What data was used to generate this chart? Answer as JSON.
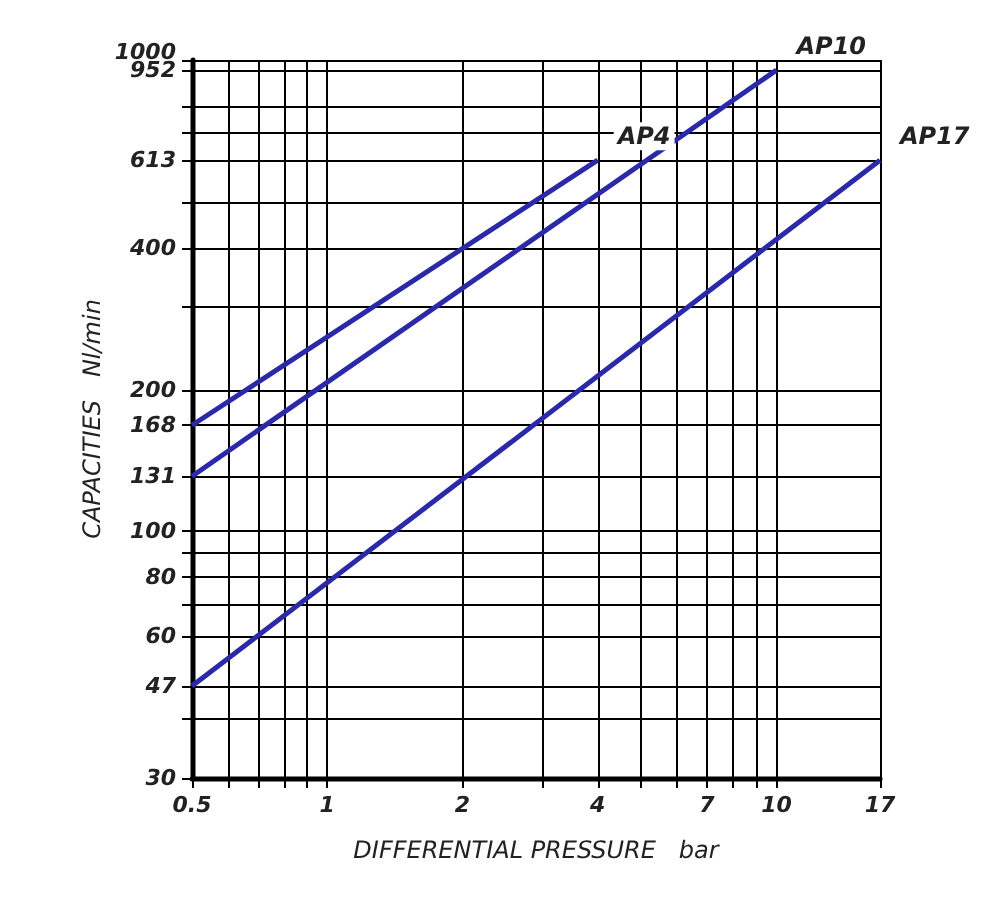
{
  "chart_data": {
    "type": "line",
    "xlabel": "DIFFERENTIAL PRESSURE   bar",
    "ylabel": "CAPACITIES   Nl/min",
    "log": "xy",
    "grid": true,
    "legend": false,
    "marker": "none",
    "line_style": "solid",
    "xlim": [
      0.5,
      17
    ],
    "ylim": [
      30,
      1000
    ],
    "xticks": [
      {
        "value": 0.5,
        "label": "0.5"
      },
      {
        "value": 0.6,
        "label": null
      },
      {
        "value": 0.7,
        "label": null
      },
      {
        "value": 0.8,
        "label": null
      },
      {
        "value": 0.9,
        "label": null
      },
      1,
      2,
      {
        "value": 3,
        "label": null
      },
      4,
      {
        "value": 5,
        "label": null
      },
      {
        "value": 6,
        "label": null
      },
      7,
      {
        "value": 8,
        "label": null
      },
      {
        "value": 9,
        "label": null
      },
      10,
      17
    ],
    "yticks": [
      30,
      {
        "value": 40,
        "label": null
      },
      47,
      60,
      {
        "value": 70,
        "label": null
      },
      80,
      {
        "value": 90,
        "label": null
      },
      100,
      131,
      168,
      200,
      {
        "value": 300,
        "label": null
      },
      400,
      {
        "value": 500,
        "label": null
      },
      613,
      {
        "value": 700,
        "label": null
      },
      {
        "value": 800,
        "label": null
      },
      952,
      1000
    ],
    "series": [
      {
        "name": "AP4",
        "color": "#2a2aa8",
        "x": [
          0.5,
          4
        ],
        "values": [
          168,
          613
        ]
      },
      {
        "name": "AP10",
        "color": "#2a2aa8",
        "x": [
          0.5,
          10
        ],
        "values": [
          131,
          952
        ]
      },
      {
        "name": "AP17",
        "color": "#2a2aa8",
        "x": [
          0.5,
          17
        ],
        "values": [
          47,
          613
        ]
      }
    ]
  }
}
